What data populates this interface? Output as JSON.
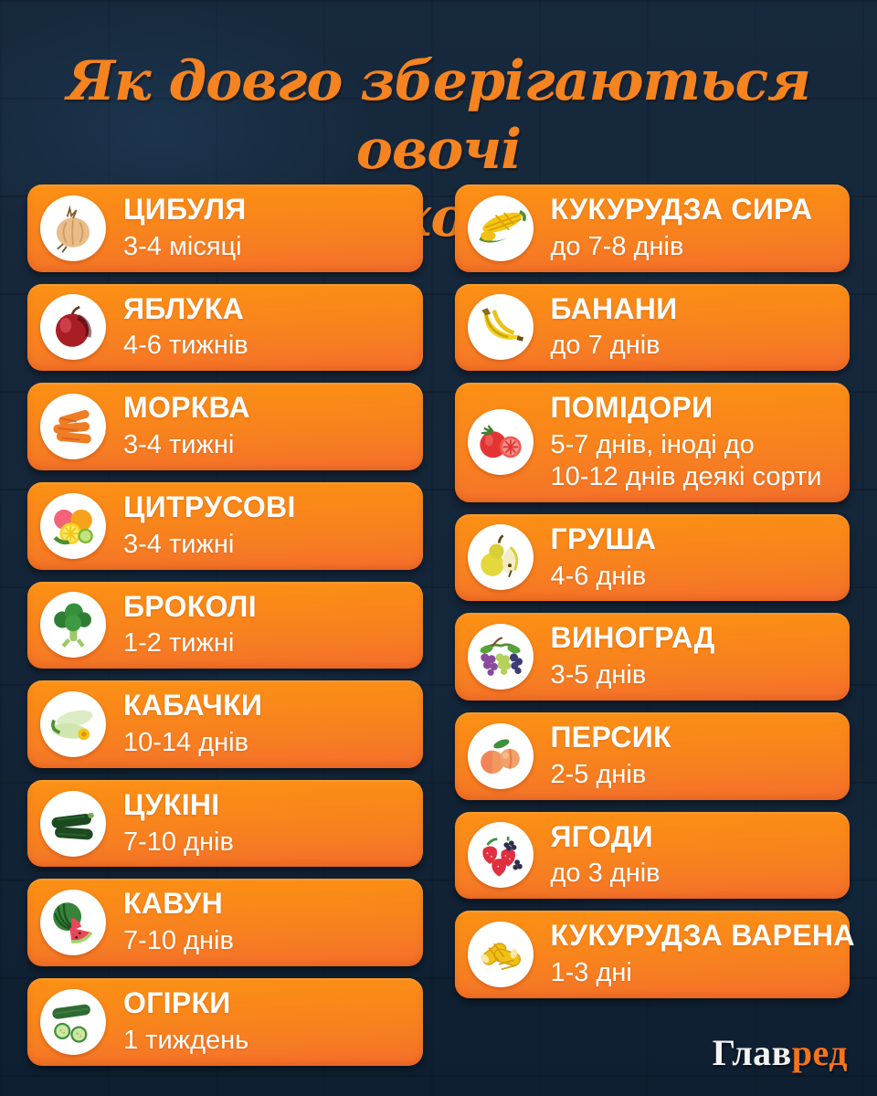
{
  "title": {
    "line1": "Як довго зберігаються овочі",
    "line2": "і фрукти в холодильнику"
  },
  "colors": {
    "background": "#142538",
    "card_gradient_top": "#fc9113",
    "card_gradient_bottom": "#f4702c",
    "title_orange": "#f5831f",
    "text_white": "#ffffff",
    "logo_white": "#f4f4f4",
    "logo_orange": "#f4741c"
  },
  "columns": [
    {
      "items": [
        {
          "icon": "onion-icon",
          "title": "ЦИБУЛЯ",
          "duration": [
            "3-4 місяці"
          ]
        },
        {
          "icon": "apple-icon",
          "title": "ЯБЛУКА",
          "duration": [
            "4-6 тижнів"
          ]
        },
        {
          "icon": "carrot-icon",
          "title": "МОРКВА",
          "duration": [
            "3-4 тижні"
          ]
        },
        {
          "icon": "citrus-icon",
          "title": "ЦИТРУСОВІ",
          "duration": [
            "3-4 тижні"
          ]
        },
        {
          "icon": "broccoli-icon",
          "title": "БРОКОЛІ",
          "duration": [
            "1-2 тижні"
          ]
        },
        {
          "icon": "squash-icon",
          "title": "КАБАЧКИ",
          "duration": [
            "10-14 днів"
          ]
        },
        {
          "icon": "zucchini-icon",
          "title": "ЦУКІНІ",
          "duration": [
            "7-10 днів"
          ]
        },
        {
          "icon": "watermelon-icon",
          "title": "КАВУН",
          "duration": [
            "7-10 днів"
          ]
        },
        {
          "icon": "cucumber-icon",
          "title": "ОГІРКИ",
          "duration": [
            "1 тиждень"
          ]
        }
      ]
    },
    {
      "items": [
        {
          "icon": "corn-raw-icon",
          "title": "КУКУРУДЗА СИРА",
          "duration": [
            "до 7-8 днів"
          ]
        },
        {
          "icon": "banana-icon",
          "title": "БАНАНИ",
          "duration": [
            "до 7 днів"
          ]
        },
        {
          "icon": "tomato-icon",
          "title": "ПОМІДОРИ",
          "duration": [
            "5-7 днів, іноді до",
            "10-12 днів деякі сорти"
          ]
        },
        {
          "icon": "pear-icon",
          "title": "ГРУША",
          "duration": [
            "4-6 днів"
          ]
        },
        {
          "icon": "grapes-icon",
          "title": "ВИНОГРАД",
          "duration": [
            "3-5 днів"
          ]
        },
        {
          "icon": "peach-icon",
          "title": "ПЕРСИК",
          "duration": [
            "2-5 днів"
          ]
        },
        {
          "icon": "berries-icon",
          "title": "ЯГОДИ",
          "duration": [
            "до 3 днів"
          ]
        },
        {
          "icon": "corn-cooked-icon",
          "title": "КУКУРУДЗА ВАРЕНА",
          "duration": [
            "1-3 дні"
          ]
        }
      ]
    }
  ],
  "logo": {
    "part1": "Глав",
    "part2": "ред"
  }
}
